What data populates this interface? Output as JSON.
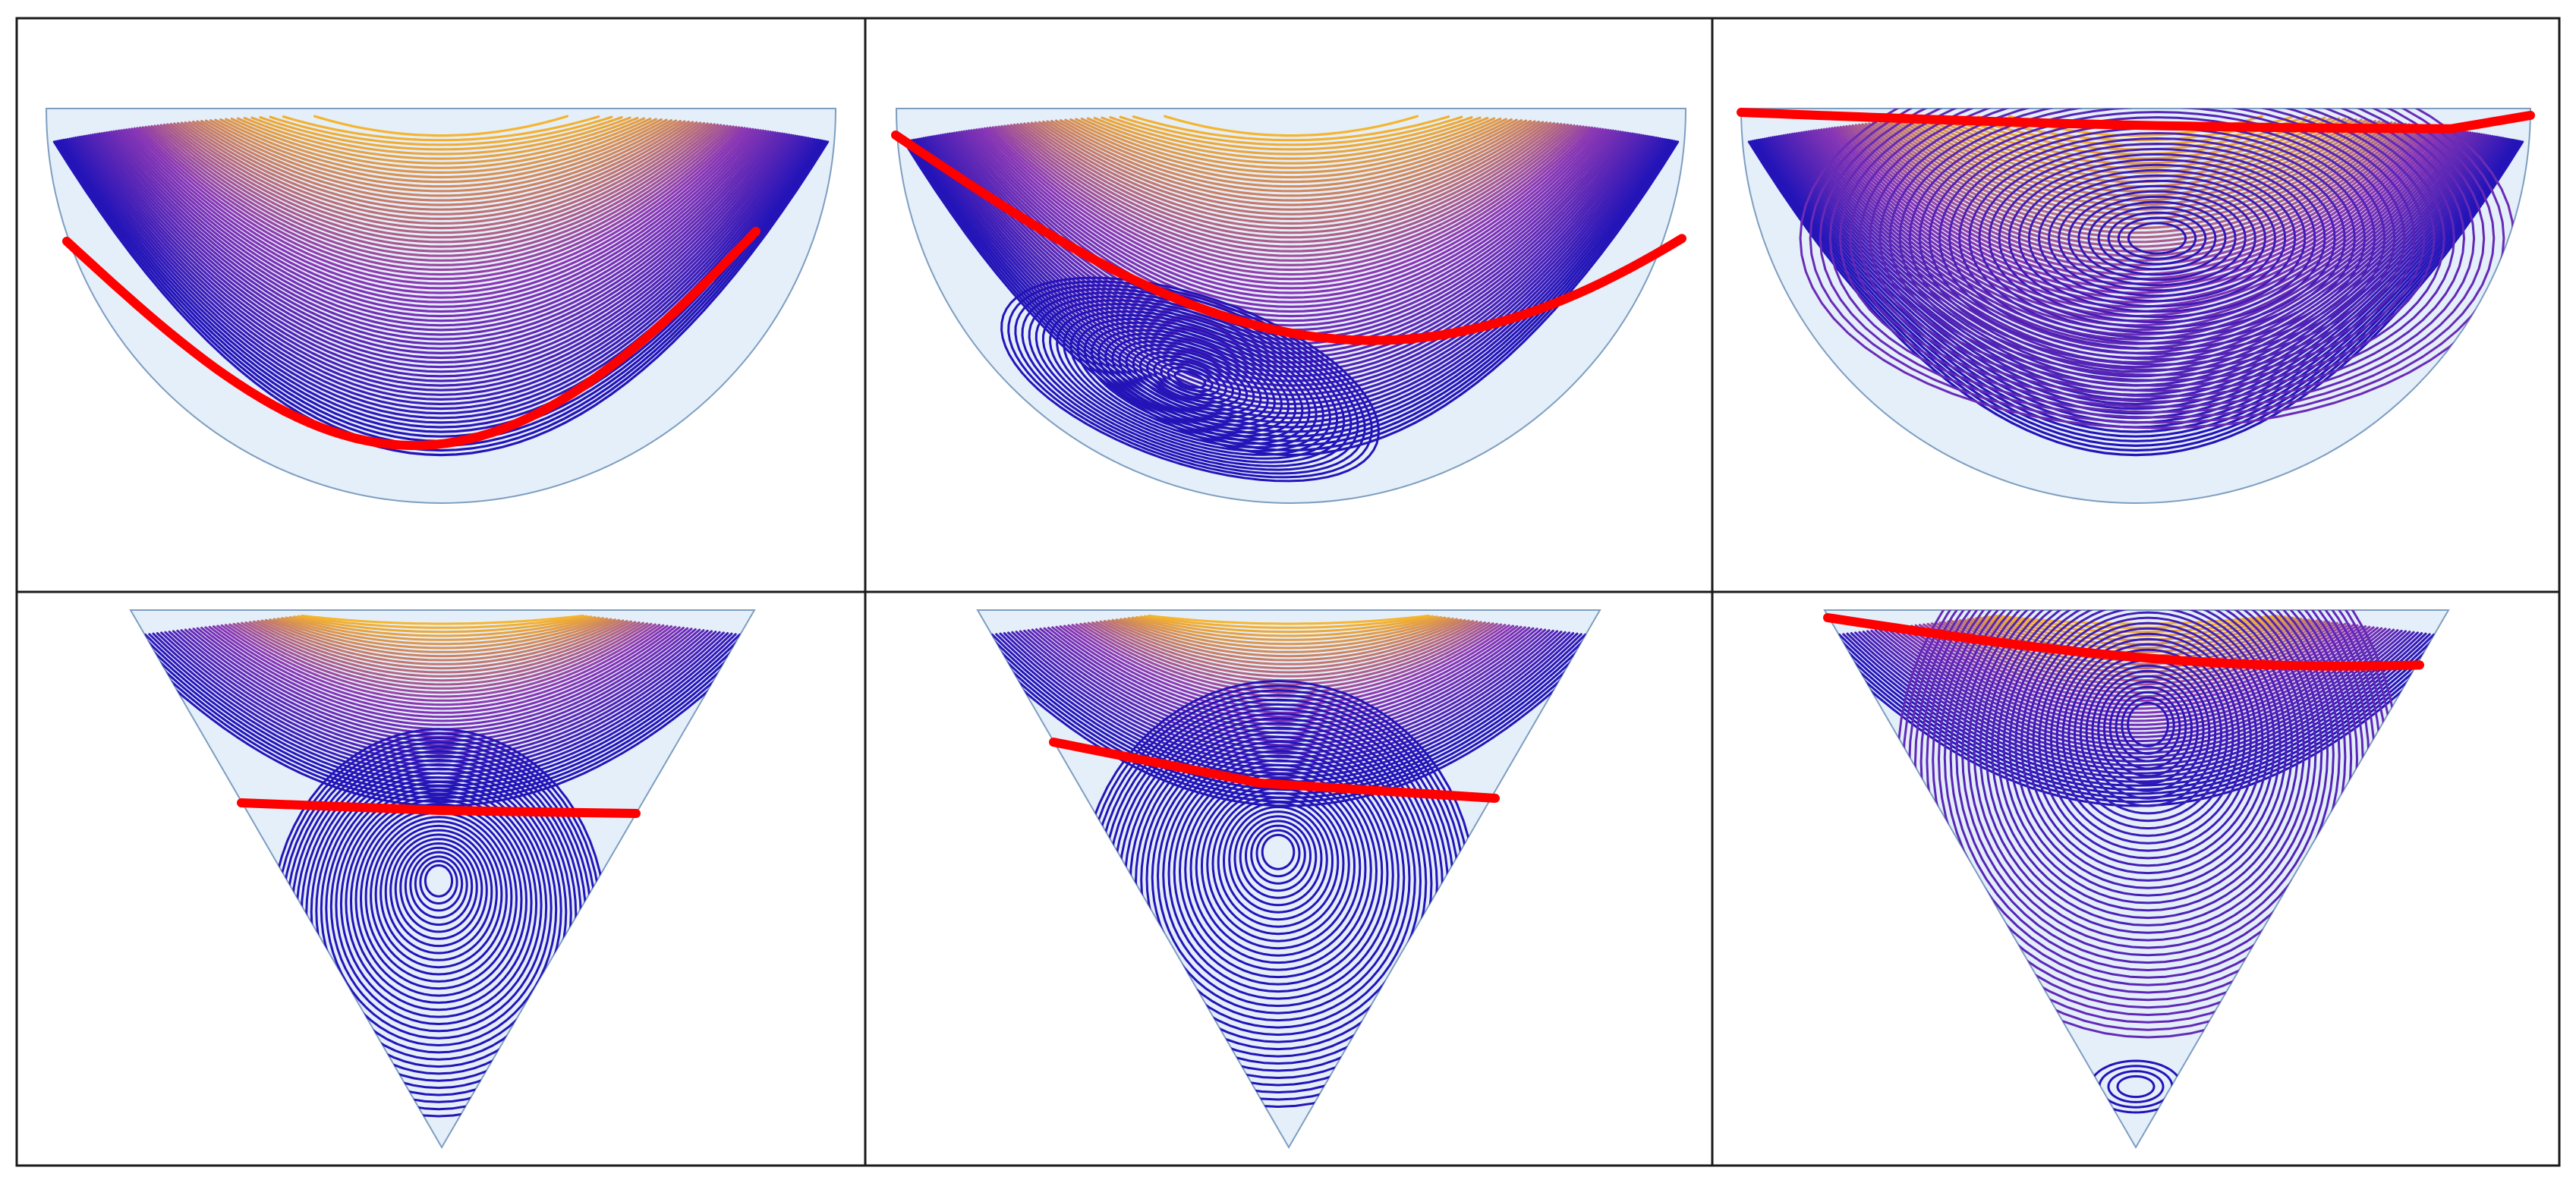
{
  "figure": {
    "layout": {
      "rows": 2,
      "columns": 3
    },
    "colors": {
      "background": "#ffffff",
      "grid_line": "#1a1a1a",
      "domain_fill": "#e4effa",
      "domain_edge": "#7e9ec0",
      "streamline_low": "#2414b8",
      "streamline_mid": "#8a36b4",
      "streamline_high": "#f6b52e",
      "separatrix": "#ff0000"
    },
    "panels": [
      {
        "id": "panel-1",
        "shape": "semicircle",
        "vortex": "none"
      },
      {
        "id": "panel-2",
        "shape": "semicircle",
        "vortex": "lower-left"
      },
      {
        "id": "panel-3",
        "shape": "semicircle",
        "vortex": "center"
      },
      {
        "id": "panel-4",
        "shape": "triangle",
        "vortex": "lower"
      },
      {
        "id": "panel-5",
        "shape": "triangle",
        "vortex": "lower"
      },
      {
        "id": "panel-6",
        "shape": "triangle",
        "vortex": "upper"
      }
    ]
  }
}
